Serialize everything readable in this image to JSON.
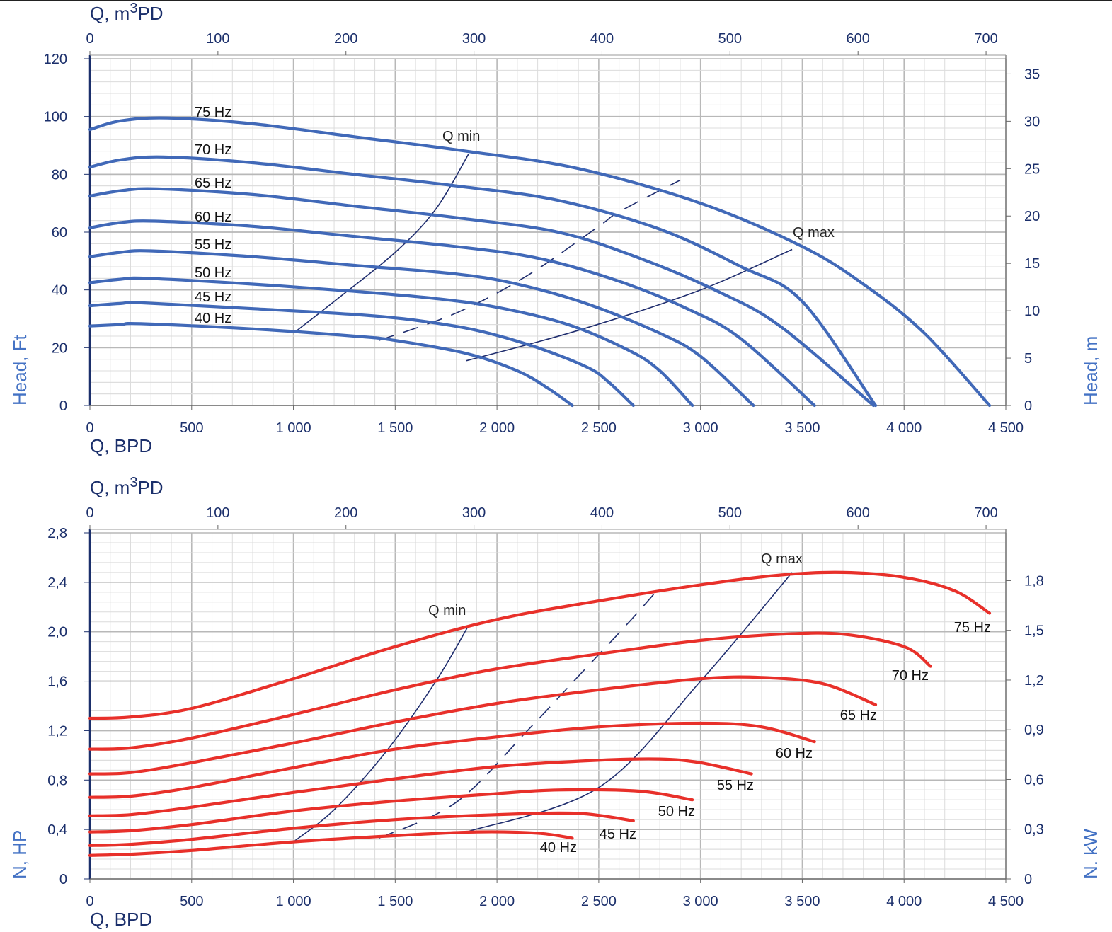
{
  "chart_data": [
    {
      "type": "line",
      "title": "",
      "top_axis": {
        "label": "Q, m³PD",
        "ticks": [
          "0",
          "100",
          "200",
          "300",
          "400",
          "500",
          "600",
          "700"
        ]
      },
      "bottom_axis": {
        "label": "Q, BPD",
        "ticks": [
          "0",
          "500",
          "1 000",
          "1 500",
          "2 000",
          "2 500",
          "3 000",
          "3 500",
          "4 000",
          "4 500"
        ],
        "xlim": [
          0,
          4500
        ]
      },
      "left_axis": {
        "label": "Head, Ft",
        "ticks": [
          "0",
          "20",
          "40",
          "60",
          "80",
          "100",
          "120"
        ],
        "ylim": [
          0,
          120
        ]
      },
      "right_axis": {
        "label": "Head, m",
        "ticks": [
          "0",
          "5",
          "10",
          "15",
          "20",
          "25",
          "30",
          "35"
        ],
        "ylim": [
          0,
          36.6
        ]
      },
      "grid": true,
      "color": "#4169b8",
      "series": [
        {
          "name": "75 Hz",
          "points": [
            [
              0,
              95.5
            ],
            [
              150,
              98.5
            ],
            [
              380,
              99.5
            ],
            [
              800,
              97.5
            ],
            [
              1300,
              93
            ],
            [
              1850,
              88
            ],
            [
              2400,
              82
            ],
            [
              3000,
              70
            ],
            [
              3500,
              55
            ],
            [
              3800,
              42
            ],
            [
              4100,
              25
            ],
            [
              4420,
              0
            ]
          ]
        },
        {
          "name": "70 Hz",
          "points": [
            [
              0,
              82.5
            ],
            [
              150,
              85
            ],
            [
              360,
              86
            ],
            [
              800,
              84
            ],
            [
              1300,
              80
            ],
            [
              1800,
              76
            ],
            [
              2300,
              71
            ],
            [
              2800,
              61
            ],
            [
              3200,
              48
            ],
            [
              3500,
              36
            ],
            [
              3860,
              0
            ]
          ]
        },
        {
          "name": "65 Hz",
          "points": [
            [
              0,
              72.5
            ],
            [
              150,
              74.3
            ],
            [
              330,
              75
            ],
            [
              800,
              73
            ],
            [
              1300,
              69
            ],
            [
              1800,
              65
            ],
            [
              2300,
              60
            ],
            [
              2700,
              51
            ],
            [
              3100,
              39
            ],
            [
              3400,
              27
            ],
            [
              3850,
              0
            ]
          ]
        },
        {
          "name": "60 Hz",
          "points": [
            [
              0,
              61.5
            ],
            [
              150,
              63.3
            ],
            [
              320,
              63.8
            ],
            [
              800,
              62
            ],
            [
              1300,
              58.5
            ],
            [
              1800,
              55
            ],
            [
              2200,
              51
            ],
            [
              2600,
              43
            ],
            [
              2950,
              33
            ],
            [
              3200,
              23
            ],
            [
              3560,
              0
            ]
          ]
        },
        {
          "name": "55 Hz",
          "points": [
            [
              0,
              51.5
            ],
            [
              150,
              53
            ],
            [
              300,
              53.5
            ],
            [
              800,
              51.5
            ],
            [
              1300,
              48.5
            ],
            [
              1800,
              45.5
            ],
            [
              2100,
              42
            ],
            [
              2450,
              35
            ],
            [
              2800,
              25
            ],
            [
              3000,
              17
            ],
            [
              3260,
              0
            ]
          ]
        },
        {
          "name": "50 Hz",
          "points": [
            [
              0,
              42.5
            ],
            [
              150,
              43.7
            ],
            [
              280,
              44
            ],
            [
              800,
              42
            ],
            [
              1300,
              39.5
            ],
            [
              1700,
              37
            ],
            [
              2000,
              34
            ],
            [
              2350,
              28
            ],
            [
              2650,
              19
            ],
            [
              2800,
              12
            ],
            [
              2960,
              0
            ]
          ]
        },
        {
          "name": "45 Hz",
          "points": [
            [
              0,
              34.5
            ],
            [
              150,
              35.3
            ],
            [
              260,
              35.5
            ],
            [
              800,
              33.5
            ],
            [
              1300,
              31.5
            ],
            [
              1600,
              29.5
            ],
            [
              1900,
              26
            ],
            [
              2200,
              20
            ],
            [
              2450,
              13
            ],
            [
              2550,
              8
            ],
            [
              2670,
              0
            ]
          ]
        },
        {
          "name": "40 Hz",
          "points": [
            [
              0,
              27.5
            ],
            [
              150,
              28
            ],
            [
              250,
              28.3
            ],
            [
              800,
              26.5
            ],
            [
              1300,
              24
            ],
            [
              1500,
              22.5
            ],
            [
              1850,
              18
            ],
            [
              2100,
              12
            ],
            [
              2250,
              6
            ],
            [
              2370,
              0
            ]
          ]
        }
      ],
      "reference_lines": [
        {
          "name": "Q min",
          "style": "solid",
          "points": [
            [
              1000,
              25
            ],
            [
              1200,
              36
            ],
            [
              1500,
              53
            ],
            [
              1700,
              68
            ],
            [
              1860,
              87
            ]
          ]
        },
        {
          "name": "Q max",
          "style": "solid",
          "points": [
            [
              1850,
              15.5
            ],
            [
              2400,
              26
            ],
            [
              3000,
              40
            ],
            [
              3450,
              54
            ]
          ]
        },
        {
          "name": "",
          "style": "dashed",
          "points": [
            [
              1420,
              22.5
            ],
            [
              1800,
              32
            ],
            [
              2150,
              45
            ],
            [
              2500,
              62
            ],
            [
              2600,
              67
            ],
            [
              2900,
              78
            ]
          ]
        }
      ]
    },
    {
      "type": "line",
      "title": "",
      "top_axis": {
        "label": "Q, m³PD",
        "ticks": [
          "0",
          "100",
          "200",
          "300",
          "400",
          "500",
          "600",
          "700"
        ]
      },
      "bottom_axis": {
        "label": "Q, BPD",
        "ticks": [
          "0",
          "500",
          "1 000",
          "1 500",
          "2 000",
          "2 500",
          "3 000",
          "3 500",
          "4 000",
          "4 500"
        ],
        "xlim": [
          0,
          4500
        ]
      },
      "left_axis": {
        "label": "N, HP",
        "ticks": [
          "0",
          "0,4",
          "0,8",
          "1,2",
          "1,6",
          "2,0",
          "2,4",
          "2,8"
        ],
        "ylim": [
          0,
          2.8
        ]
      },
      "right_axis": {
        "label": "N. kW",
        "ticks": [
          "0",
          "0,3",
          "0,6",
          "0,9",
          "1,2",
          "1,5",
          "1,8"
        ],
        "ylim": [
          0,
          2.088
        ]
      },
      "grid": true,
      "color": "#e8302a",
      "series": [
        {
          "name": "75 Hz",
          "points": [
            [
              0,
              1.3
            ],
            [
              200,
              1.31
            ],
            [
              500,
              1.38
            ],
            [
              1000,
              1.62
            ],
            [
              1500,
              1.88
            ],
            [
              2000,
              2.1
            ],
            [
              2500,
              2.25
            ],
            [
              3000,
              2.38
            ],
            [
              3400,
              2.46
            ],
            [
              3700,
              2.48
            ],
            [
              4000,
              2.44
            ],
            [
              4250,
              2.33
            ],
            [
              4420,
              2.15
            ]
          ]
        },
        {
          "name": "70 Hz",
          "points": [
            [
              0,
              1.05
            ],
            [
              200,
              1.06
            ],
            [
              500,
              1.14
            ],
            [
              1000,
              1.33
            ],
            [
              1500,
              1.53
            ],
            [
              2000,
              1.7
            ],
            [
              2500,
              1.82
            ],
            [
              3000,
              1.93
            ],
            [
              3400,
              1.98
            ],
            [
              3700,
              1.98
            ],
            [
              4000,
              1.88
            ],
            [
              4130,
              1.72
            ]
          ]
        },
        {
          "name": "65 Hz",
          "points": [
            [
              0,
              0.85
            ],
            [
              200,
              0.86
            ],
            [
              500,
              0.94
            ],
            [
              1000,
              1.1
            ],
            [
              1500,
              1.27
            ],
            [
              2000,
              1.42
            ],
            [
              2500,
              1.53
            ],
            [
              3000,
              1.62
            ],
            [
              3300,
              1.63
            ],
            [
              3600,
              1.58
            ],
            [
              3860,
              1.41
            ]
          ]
        },
        {
          "name": "60 Hz",
          "points": [
            [
              0,
              0.66
            ],
            [
              200,
              0.67
            ],
            [
              500,
              0.74
            ],
            [
              1000,
              0.9
            ],
            [
              1500,
              1.05
            ],
            [
              2000,
              1.15
            ],
            [
              2500,
              1.23
            ],
            [
              3000,
              1.26
            ],
            [
              3300,
              1.23
            ],
            [
              3560,
              1.11
            ]
          ]
        },
        {
          "name": "55 Hz",
          "points": [
            [
              0,
              0.51
            ],
            [
              200,
              0.52
            ],
            [
              500,
              0.58
            ],
            [
              1000,
              0.7
            ],
            [
              1500,
              0.81
            ],
            [
              2000,
              0.91
            ],
            [
              2500,
              0.96
            ],
            [
              2800,
              0.97
            ],
            [
              3000,
              0.94
            ],
            [
              3250,
              0.85
            ]
          ]
        },
        {
          "name": "50 Hz",
          "points": [
            [
              0,
              0.38
            ],
            [
              200,
              0.39
            ],
            [
              500,
              0.44
            ],
            [
              1000,
              0.55
            ],
            [
              1500,
              0.63
            ],
            [
              2000,
              0.69
            ],
            [
              2300,
              0.72
            ],
            [
              2700,
              0.71
            ],
            [
              2960,
              0.64
            ]
          ]
        },
        {
          "name": "45 Hz",
          "points": [
            [
              0,
              0.27
            ],
            [
              200,
              0.28
            ],
            [
              500,
              0.32
            ],
            [
              1000,
              0.41
            ],
            [
              1500,
              0.48
            ],
            [
              2000,
              0.52
            ],
            [
              2400,
              0.53
            ],
            [
              2670,
              0.47
            ]
          ]
        },
        {
          "name": "40 Hz",
          "points": [
            [
              0,
              0.19
            ],
            [
              200,
              0.2
            ],
            [
              500,
              0.23
            ],
            [
              1000,
              0.3
            ],
            [
              1500,
              0.35
            ],
            [
              1900,
              0.38
            ],
            [
              2200,
              0.37
            ],
            [
              2370,
              0.33
            ]
          ]
        }
      ],
      "reference_lines": [
        {
          "name": "Q min",
          "style": "solid",
          "points": [
            [
              1000,
              0.3
            ],
            [
              1200,
              0.56
            ],
            [
              1450,
              1.02
            ],
            [
              1700,
              1.6
            ],
            [
              1860,
              2.05
            ]
          ]
        },
        {
          "name": "Q max",
          "style": "solid",
          "points": [
            [
              1850,
              0.38
            ],
            [
              2500,
              0.74
            ],
            [
              3000,
              1.6
            ],
            [
              3450,
              2.48
            ]
          ]
        },
        {
          "name": "",
          "style": "dashed",
          "points": [
            [
              1420,
              0.33
            ],
            [
              1800,
              0.62
            ],
            [
              2150,
              1.2
            ],
            [
              2400,
              1.64
            ],
            [
              2650,
              2.08
            ],
            [
              2800,
              2.36
            ]
          ]
        }
      ]
    }
  ]
}
